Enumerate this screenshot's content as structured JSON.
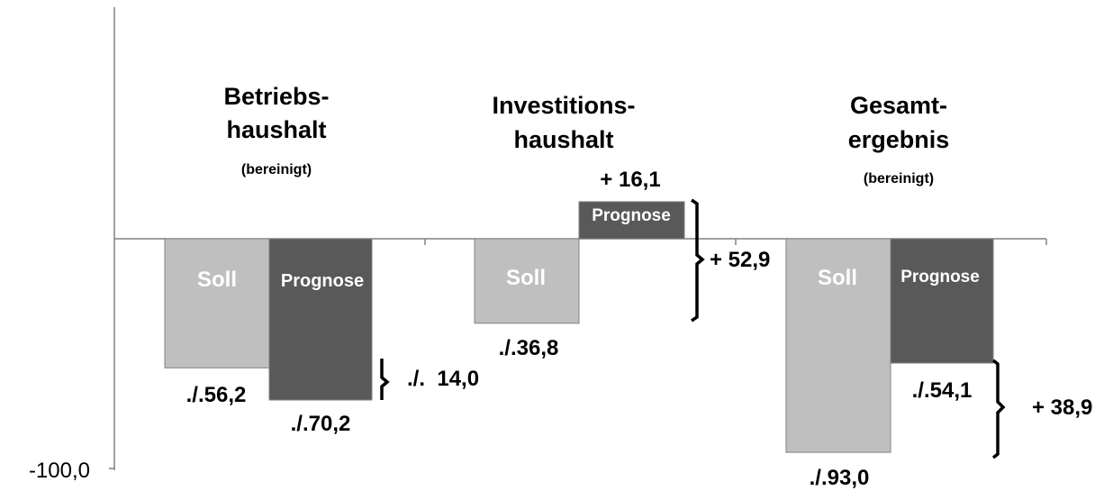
{
  "chart_data": {
    "type": "bar",
    "ylim": [
      -100,
      100
    ],
    "y_tick_labels": [
      "-100,0"
    ],
    "grid": false,
    "legend": "none",
    "colors": {
      "Soll": "#bfbfbf",
      "Prognose": "#595959"
    },
    "groups": [
      {
        "title_line1": "Betriebs-",
        "title_line2": "haushalt",
        "subtitle": "(bereinigt)",
        "bars": [
          {
            "series": "Soll",
            "bar_label": "Soll",
            "value": -56.2,
            "value_label": "./.56,2"
          },
          {
            "series": "Prognose",
            "bar_label": "Prognose",
            "value": -70.2,
            "value_label": "./.70,2"
          }
        ],
        "difference_label": "./.  14,0"
      },
      {
        "title_line1": "Investitions-",
        "title_line2": "haushalt",
        "subtitle": "",
        "bars": [
          {
            "series": "Soll",
            "bar_label": "Soll",
            "value": -36.8,
            "value_label": "./.36,8"
          },
          {
            "series": "Prognose",
            "bar_label": "Prognose",
            "value": 16.1,
            "value_label": "+ 16,1"
          }
        ],
        "difference_label": "+ 52,9"
      },
      {
        "title_line1": "Gesamt-",
        "title_line2": "ergebnis",
        "subtitle": "(bereinigt)",
        "bars": [
          {
            "series": "Soll",
            "bar_label": "Soll",
            "value": -93.0,
            "value_label": "./.93,0"
          },
          {
            "series": "Prognose",
            "bar_label": "Prognose",
            "value": -54.1,
            "value_label": "./.54,1"
          }
        ],
        "difference_label": "+ 38,9"
      }
    ]
  }
}
